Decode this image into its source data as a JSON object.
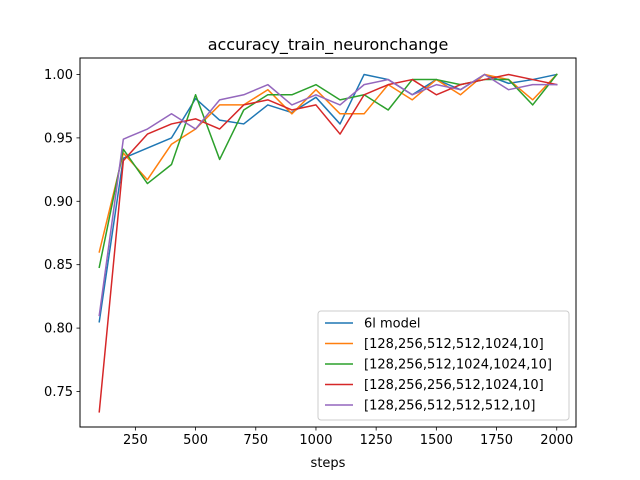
{
  "chart_data": {
    "type": "line",
    "title": "accuracy_train_neuronchange",
    "xlabel": "steps",
    "ylabel": "",
    "xlim": [
      20,
      2080
    ],
    "ylim": [
      0.722,
      1.013
    ],
    "xticks": [
      250,
      500,
      750,
      1000,
      1250,
      1500,
      1750,
      2000
    ],
    "yticks": [
      0.75,
      0.8,
      0.85,
      0.9,
      0.95,
      1.0
    ],
    "xtick_labels": [
      "250",
      "500",
      "750",
      "1000",
      "1250",
      "1500",
      "1750",
      "2000"
    ],
    "ytick_labels": [
      "0.75",
      "0.80",
      "0.85",
      "0.90",
      "0.95",
      "1.00"
    ],
    "grid": false,
    "legend_position": "lower-right",
    "x": [
      100,
      200,
      300,
      400,
      500,
      600,
      700,
      800,
      900,
      1000,
      1100,
      1200,
      1300,
      1400,
      1500,
      1600,
      1700,
      1800,
      1900,
      2000
    ],
    "series": [
      {
        "name": "6l model",
        "color": "#1f77b4",
        "values": [
          0.805,
          0.934,
          0.942,
          0.95,
          0.981,
          0.964,
          0.961,
          0.976,
          0.97,
          0.982,
          0.961,
          1.0,
          0.996,
          0.984,
          0.996,
          0.988,
          1.0,
          0.993,
          0.996,
          1.0
        ]
      },
      {
        "name": "[128,256,512,512,1024,10]",
        "color": "#ff7f0e",
        "values": [
          0.86,
          0.938,
          0.917,
          0.945,
          0.957,
          0.976,
          0.976,
          0.988,
          0.969,
          0.988,
          0.969,
          0.969,
          0.992,
          0.98,
          0.996,
          0.984,
          1.0,
          0.996,
          0.98,
          1.0
        ]
      },
      {
        "name": "[128,256,512,1024,1024,10]",
        "color": "#2ca02c",
        "values": [
          0.848,
          0.941,
          0.914,
          0.929,
          0.984,
          0.933,
          0.972,
          0.984,
          0.984,
          0.992,
          0.98,
          0.984,
          0.972,
          0.996,
          0.996,
          0.992,
          0.996,
          0.996,
          0.976,
          1.0
        ]
      },
      {
        "name": "[128,256,256,512,1024,10]",
        "color": "#d62728",
        "values": [
          0.734,
          0.932,
          0.953,
          0.961,
          0.965,
          0.957,
          0.976,
          0.98,
          0.972,
          0.976,
          0.953,
          0.984,
          0.992,
          0.996,
          0.984,
          0.992,
          0.996,
          1.0,
          0.996,
          0.992
        ]
      },
      {
        "name": "[128,256,512,512,512,10]",
        "color": "#9467bd",
        "values": [
          0.81,
          0.949,
          0.957,
          0.969,
          0.957,
          0.98,
          0.984,
          0.992,
          0.976,
          0.984,
          0.976,
          0.992,
          0.996,
          0.984,
          0.992,
          0.988,
          1.0,
          0.988,
          0.992,
          0.992
        ]
      }
    ]
  }
}
